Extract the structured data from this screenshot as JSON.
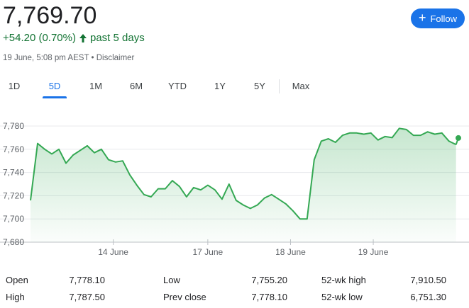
{
  "quote": {
    "price": "7,769.70",
    "change": "+54.20 (0.70%)",
    "period": "past 5 days",
    "timestamp": "19 June, 5:08 pm AEST",
    "separator": "•",
    "disclaimer": "Disclaimer"
  },
  "follow_button": {
    "label": "Follow",
    "icon": "plus-icon"
  },
  "tabs": [
    "1D",
    "5D",
    "1M",
    "6M",
    "YTD",
    "1Y",
    "5Y",
    "Max"
  ],
  "active_tab": "5D",
  "colors": {
    "up": "#137333",
    "line": "#34a853",
    "accent": "#1a73e8"
  },
  "chart_data": {
    "type": "area",
    "title": "",
    "xlabel": "",
    "ylabel": "",
    "ylim": [
      7680,
      7790
    ],
    "y_ticks": [
      "7,780",
      "7,760",
      "7,740",
      "7,720",
      "7,700",
      "7,680"
    ],
    "x_ticks": [
      {
        "label": "14 June",
        "x": 7
      },
      {
        "label": "17 June",
        "x": 15
      },
      {
        "label": "18 June",
        "x": 22
      },
      {
        "label": "19 June",
        "x": 29
      }
    ],
    "x_range": [
      0,
      36.5
    ],
    "grid": true,
    "series": [
      {
        "values": [
          {
            "x": 0,
            "y": 7716
          },
          {
            "x": 0.6,
            "y": 7765
          },
          {
            "x": 1.2,
            "y": 7760
          },
          {
            "x": 1.8,
            "y": 7756
          },
          {
            "x": 2.4,
            "y": 7760
          },
          {
            "x": 3.0,
            "y": 7748
          },
          {
            "x": 3.6,
            "y": 7755
          },
          {
            "x": 4.2,
            "y": 7759
          },
          {
            "x": 4.8,
            "y": 7763
          },
          {
            "x": 5.4,
            "y": 7757
          },
          {
            "x": 6.0,
            "y": 7760
          },
          {
            "x": 6.6,
            "y": 7751
          },
          {
            "x": 7.2,
            "y": 7749
          },
          {
            "x": 7.8,
            "y": 7750
          },
          {
            "x": 8.4,
            "y": 7738
          },
          {
            "x": 9.0,
            "y": 7729
          },
          {
            "x": 9.6,
            "y": 7721
          },
          {
            "x": 10.2,
            "y": 7719
          },
          {
            "x": 10.8,
            "y": 7726
          },
          {
            "x": 11.4,
            "y": 7726
          },
          {
            "x": 12.0,
            "y": 7733
          },
          {
            "x": 12.6,
            "y": 7728
          },
          {
            "x": 13.2,
            "y": 7719
          },
          {
            "x": 13.8,
            "y": 7727
          },
          {
            "x": 14.4,
            "y": 7725
          },
          {
            "x": 15.0,
            "y": 7729
          },
          {
            "x": 15.6,
            "y": 7725
          },
          {
            "x": 16.2,
            "y": 7717
          },
          {
            "x": 16.8,
            "y": 7730
          },
          {
            "x": 17.4,
            "y": 7716
          },
          {
            "x": 18.0,
            "y": 7712
          },
          {
            "x": 18.6,
            "y": 7709
          },
          {
            "x": 19.2,
            "y": 7712
          },
          {
            "x": 19.8,
            "y": 7718
          },
          {
            "x": 20.4,
            "y": 7721
          },
          {
            "x": 21.0,
            "y": 7717
          },
          {
            "x": 21.6,
            "y": 7713
          },
          {
            "x": 22.2,
            "y": 7707
          },
          {
            "x": 22.8,
            "y": 7700
          },
          {
            "x": 23.4,
            "y": 7700
          },
          {
            "x": 24.0,
            "y": 7751
          },
          {
            "x": 24.6,
            "y": 7767
          },
          {
            "x": 25.2,
            "y": 7769
          },
          {
            "x": 25.8,
            "y": 7766
          },
          {
            "x": 26.4,
            "y": 7772
          },
          {
            "x": 27.0,
            "y": 7774
          },
          {
            "x": 27.6,
            "y": 7774
          },
          {
            "x": 28.2,
            "y": 7773
          },
          {
            "x": 28.8,
            "y": 7774
          },
          {
            "x": 29.4,
            "y": 7768
          },
          {
            "x": 30.0,
            "y": 7771
          },
          {
            "x": 30.6,
            "y": 7770
          },
          {
            "x": 31.2,
            "y": 7778
          },
          {
            "x": 31.8,
            "y": 7777
          },
          {
            "x": 32.4,
            "y": 7772
          },
          {
            "x": 33.0,
            "y": 7772
          },
          {
            "x": 33.6,
            "y": 7775
          },
          {
            "x": 34.2,
            "y": 7773
          },
          {
            "x": 34.8,
            "y": 7774
          },
          {
            "x": 35.4,
            "y": 7767
          },
          {
            "x": 36.0,
            "y": 7764
          }
        ]
      }
    ]
  },
  "stats": [
    {
      "label": "Open",
      "value": "7,778.10"
    },
    {
      "label": "High",
      "value": "7,787.50"
    },
    {
      "label": "Low",
      "value": "7,755.20"
    },
    {
      "label": "Prev close",
      "value": "7,778.10"
    },
    {
      "label": "52-wk high",
      "value": "7,910.50"
    },
    {
      "label": "52-wk low",
      "value": "6,751.30"
    }
  ]
}
